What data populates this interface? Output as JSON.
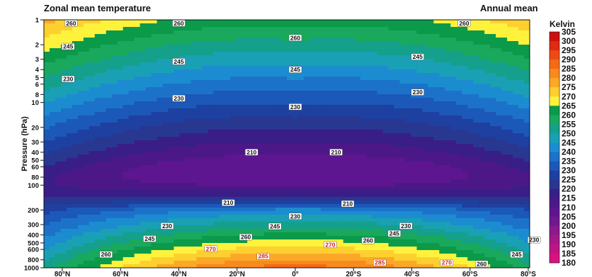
{
  "chart_data": {
    "type": "heatmap",
    "title": "Zonal mean temperature",
    "subtitle": "Annual mean",
    "xlabel": "",
    "ylabel": "Pressure (hPa)",
    "colorbar_title": "Kelvin",
    "y_scale": "log",
    "ylim": [
      1000,
      1
    ],
    "x_ticks": [
      "80°N",
      "60°N",
      "40°N",
      "20°N",
      "0°",
      "20°S",
      "40°S",
      "60°S",
      "80°S"
    ],
    "x_tick_values": [
      -80,
      -60,
      -40,
      -20,
      0,
      20,
      40,
      60,
      80
    ],
    "y_ticks": [
      "1",
      "2",
      "3",
      "4",
      "5",
      "6",
      "8",
      "10",
      "20",
      "30",
      "40",
      "50",
      "60",
      "80",
      "100",
      "200",
      "300",
      "400",
      "500",
      "600",
      "800",
      "1000"
    ],
    "y_tick_values": [
      1,
      2,
      3,
      4,
      5,
      6,
      8,
      10,
      20,
      30,
      40,
      50,
      60,
      80,
      100,
      200,
      300,
      400,
      500,
      600,
      800,
      1000
    ],
    "colorbar_ticks": [
      305,
      300,
      295,
      290,
      285,
      280,
      275,
      270,
      265,
      260,
      255,
      250,
      245,
      240,
      235,
      230,
      225,
      220,
      215,
      210,
      205,
      200,
      195,
      190,
      185,
      180
    ],
    "colorbar_tick_labels": [
      "305",
      "300",
      "295",
      "290",
      "285",
      "280",
      "275",
      "270",
      "265",
      "260",
      "255",
      "250",
      "245",
      "240",
      "235",
      "230",
      "225",
      "220",
      "215",
      "210",
      "205",
      "200",
      "195",
      "190",
      "185",
      "180"
    ],
    "colorbar_colors": [
      "#cc1010",
      "#e02a12",
      "#ee4a14",
      "#f46a18",
      "#f88a1e",
      "#fba828",
      "#fdd030",
      "#fff23c",
      "#0a9a4a",
      "#1aa85c",
      "#14a08a",
      "#1aa0b4",
      "#1c8cd0",
      "#1c72c8",
      "#1c58b8",
      "#1e40a0",
      "#283890",
      "#3a1e88",
      "#4c1888",
      "#5e1690",
      "#70188e",
      "#8a1a8e",
      "#a41888",
      "#c01484",
      "#d8127e"
    ],
    "annotations": [
      {
        "text": "260",
        "lat": -77,
        "p": 1.1
      },
      {
        "text": "260",
        "lat": -40,
        "p": 1.1
      },
      {
        "text": "260",
        "lat": 0,
        "p": 1.65
      },
      {
        "text": "260",
        "lat": 58,
        "p": 1.1
      },
      {
        "text": "245",
        "lat": -78,
        "p": 2.1
      },
      {
        "text": "245",
        "lat": -40,
        "p": 3.2
      },
      {
        "text": "245",
        "lat": 0,
        "p": 4.0
      },
      {
        "text": "245",
        "lat": 42,
        "p": 2.8
      },
      {
        "text": "230",
        "lat": -78,
        "p": 5.2
      },
      {
        "text": "230",
        "lat": -40,
        "p": 8.9
      },
      {
        "text": "230",
        "lat": 0,
        "p": 11.3
      },
      {
        "text": "230",
        "lat": 42,
        "p": 7.5
      },
      {
        "text": "210",
        "lat": -15,
        "p": 40
      },
      {
        "text": "210",
        "lat": 14,
        "p": 40
      },
      {
        "text": "210",
        "lat": -23,
        "p": 163
      },
      {
        "text": "210",
        "lat": 18,
        "p": 168
      },
      {
        "text": "230",
        "lat": 0,
        "p": 238
      },
      {
        "text": "230",
        "lat": -44,
        "p": 312
      },
      {
        "text": "245",
        "lat": -7,
        "p": 315
      },
      {
        "text": "230",
        "lat": 38,
        "p": 312
      },
      {
        "text": "245",
        "lat": 34,
        "p": 385
      },
      {
        "text": "245",
        "lat": -50,
        "p": 445
      },
      {
        "text": "260",
        "lat": -17,
        "p": 425
      },
      {
        "text": "260",
        "lat": 25,
        "p": 470
      },
      {
        "text": "270",
        "lat": 12,
        "p": 525
      },
      {
        "text": "270",
        "lat": -29,
        "p": 590
      },
      {
        "text": "230",
        "lat": 82,
        "p": 460
      },
      {
        "text": "260",
        "lat": -65,
        "p": 690
      },
      {
        "text": "285",
        "lat": -11,
        "p": 725
      },
      {
        "text": "285",
        "lat": 29,
        "p": 865
      },
      {
        "text": "270",
        "lat": 52,
        "p": 865
      },
      {
        "text": "260",
        "lat": 64,
        "p": 895
      },
      {
        "text": "245",
        "lat": 76,
        "p": 690
      }
    ]
  }
}
